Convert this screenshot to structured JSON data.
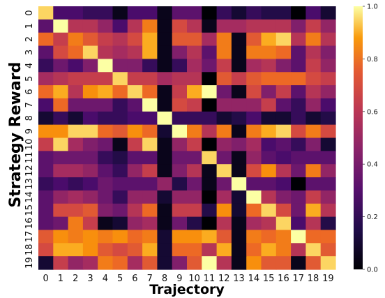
{
  "chart_data": {
    "type": "heatmap",
    "title": "",
    "xlabel": "Trajectory",
    "ylabel": "Strategy Reward",
    "x_ticks": [
      "0",
      "1",
      "2",
      "3",
      "4",
      "5",
      "6",
      "7",
      "8",
      "9",
      "10",
      "11",
      "12",
      "13",
      "14",
      "15",
      "16",
      "17",
      "18",
      "19"
    ],
    "y_ticks": [
      "0",
      "1",
      "2",
      "3",
      "4",
      "5",
      "6",
      "7",
      "8",
      "9",
      "10",
      "11",
      "12",
      "13",
      "14",
      "15",
      "16",
      "17",
      "18",
      "19"
    ],
    "colormap": "inferno",
    "colorbar": {
      "min": 0.0,
      "max": 1.0,
      "ticks": [
        "0.0",
        "0.2",
        "0.4",
        "0.6",
        "0.8",
        "1.0"
      ]
    },
    "values": [
      [
        0.95,
        0.25,
        0.25,
        0.2,
        0.2,
        0.05,
        0.25,
        0.25,
        0.05,
        0.3,
        0.3,
        0.0,
        0.2,
        0.1,
        0.2,
        0.15,
        0.15,
        0.0,
        0.25,
        0.1
      ],
      [
        0.3,
        1.0,
        0.55,
        0.55,
        0.45,
        0.25,
        0.55,
        0.8,
        0.05,
        0.65,
        0.55,
        0.05,
        0.5,
        0.5,
        0.55,
        0.55,
        0.55,
        0.4,
        0.6,
        0.45
      ],
      [
        0.75,
        0.6,
        0.8,
        0.7,
        0.6,
        0.55,
        0.65,
        0.9,
        0.05,
        0.7,
        0.7,
        0.5,
        0.8,
        0.05,
        0.7,
        0.9,
        0.95,
        0.55,
        0.8,
        0.55
      ],
      [
        0.3,
        0.65,
        0.75,
        0.95,
        0.55,
        0.5,
        0.55,
        0.9,
        0.05,
        0.4,
        0.55,
        0.3,
        0.8,
        0.05,
        0.8,
        0.8,
        0.75,
        0.3,
        0.55,
        0.4
      ],
      [
        0.2,
        0.35,
        0.25,
        0.4,
        1.0,
        0.4,
        0.4,
        0.2,
        0.05,
        0.2,
        0.5,
        0.35,
        0.6,
        0.05,
        0.5,
        0.55,
        0.4,
        0.3,
        0.6,
        0.45
      ],
      [
        0.5,
        0.55,
        0.6,
        0.6,
        0.6,
        0.95,
        0.6,
        0.6,
        0.5,
        0.55,
        0.55,
        0.0,
        0.7,
        0.6,
        0.7,
        0.75,
        0.75,
        0.75,
        0.65,
        0.6
      ],
      [
        0.75,
        0.9,
        0.55,
        0.85,
        0.9,
        0.75,
        0.95,
        0.75,
        0.05,
        0.6,
        0.9,
        1.0,
        0.35,
        0.05,
        0.65,
        0.4,
        0.6,
        0.3,
        0.55,
        0.45
      ],
      [
        0.25,
        0.75,
        0.35,
        0.35,
        0.35,
        0.2,
        0.3,
        1.0,
        0.05,
        0.65,
        0.6,
        0.0,
        0.45,
        0.45,
        0.45,
        0.6,
        0.3,
        0.2,
        0.45,
        0.25
      ],
      [
        0.1,
        0.2,
        0.1,
        0.25,
        0.2,
        0.2,
        0.25,
        0.25,
        1.0,
        0.2,
        0.2,
        0.2,
        0.1,
        0.15,
        0.25,
        0.1,
        0.1,
        0.2,
        0.1,
        0.15
      ],
      [
        0.85,
        0.85,
        0.95,
        0.95,
        0.75,
        0.7,
        0.85,
        0.75,
        0.1,
        1.0,
        0.8,
        0.55,
        0.8,
        0.05,
        0.8,
        0.9,
        0.95,
        0.65,
        0.8,
        0.65
      ],
      [
        0.6,
        0.95,
        0.5,
        0.4,
        0.35,
        0.05,
        0.6,
        0.95,
        0.05,
        0.45,
        0.6,
        0.0,
        0.45,
        0.4,
        0.5,
        0.25,
        0.3,
        0.2,
        0.4,
        0.1
      ],
      [
        0.3,
        0.35,
        0.35,
        0.35,
        0.2,
        0.15,
        0.3,
        0.3,
        0.05,
        0.35,
        0.35,
        0.95,
        0.35,
        0.05,
        0.45,
        0.3,
        0.25,
        0.3,
        0.3,
        0.3
      ],
      [
        0.3,
        0.5,
        0.5,
        0.45,
        0.3,
        0.2,
        0.45,
        0.6,
        0.05,
        0.4,
        0.55,
        0.05,
        0.95,
        0.05,
        0.65,
        0.85,
        0.55,
        0.35,
        0.8,
        0.45
      ],
      [
        0.2,
        0.25,
        0.2,
        0.25,
        0.35,
        0.3,
        0.3,
        0.3,
        0.45,
        0.15,
        0.35,
        0.05,
        0.35,
        1.0,
        0.3,
        0.3,
        0.25,
        0.0,
        0.3,
        0.3
      ],
      [
        0.3,
        0.45,
        0.5,
        0.45,
        0.35,
        0.2,
        0.45,
        0.45,
        0.1,
        0.45,
        0.45,
        0.0,
        0.5,
        0.1,
        1.0,
        0.55,
        0.4,
        0.35,
        0.6,
        0.45
      ],
      [
        0.3,
        0.65,
        0.65,
        0.7,
        0.4,
        0.35,
        0.55,
        0.75,
        0.05,
        0.6,
        0.6,
        0.15,
        0.85,
        0.1,
        0.75,
        0.95,
        0.65,
        0.35,
        0.9,
        0.55
      ],
      [
        0.3,
        0.35,
        0.8,
        0.6,
        0.05,
        0.1,
        0.45,
        0.5,
        0.05,
        0.35,
        0.15,
        0.0,
        0.55,
        0.05,
        0.5,
        0.55,
        0.95,
        0.25,
        0.55,
        0.15
      ],
      [
        0.7,
        0.85,
        0.8,
        0.85,
        0.8,
        0.85,
        0.75,
        0.8,
        0.1,
        0.85,
        0.85,
        0.9,
        0.7,
        0.05,
        0.8,
        0.75,
        0.8,
        1.0,
        0.75,
        0.75
      ],
      [
        0.65,
        0.9,
        0.9,
        0.85,
        0.7,
        0.65,
        0.7,
        0.9,
        0.1,
        0.75,
        0.75,
        0.55,
        0.9,
        0.05,
        0.75,
        0.9,
        0.8,
        0.55,
        0.95,
        0.7
      ],
      [
        0.1,
        0.6,
        0.45,
        0.5,
        0.8,
        0.75,
        0.5,
        0.7,
        0.1,
        0.4,
        0.7,
        1.0,
        0.55,
        0.05,
        0.85,
        0.7,
        0.7,
        0.05,
        0.7,
        0.95
      ]
    ]
  }
}
